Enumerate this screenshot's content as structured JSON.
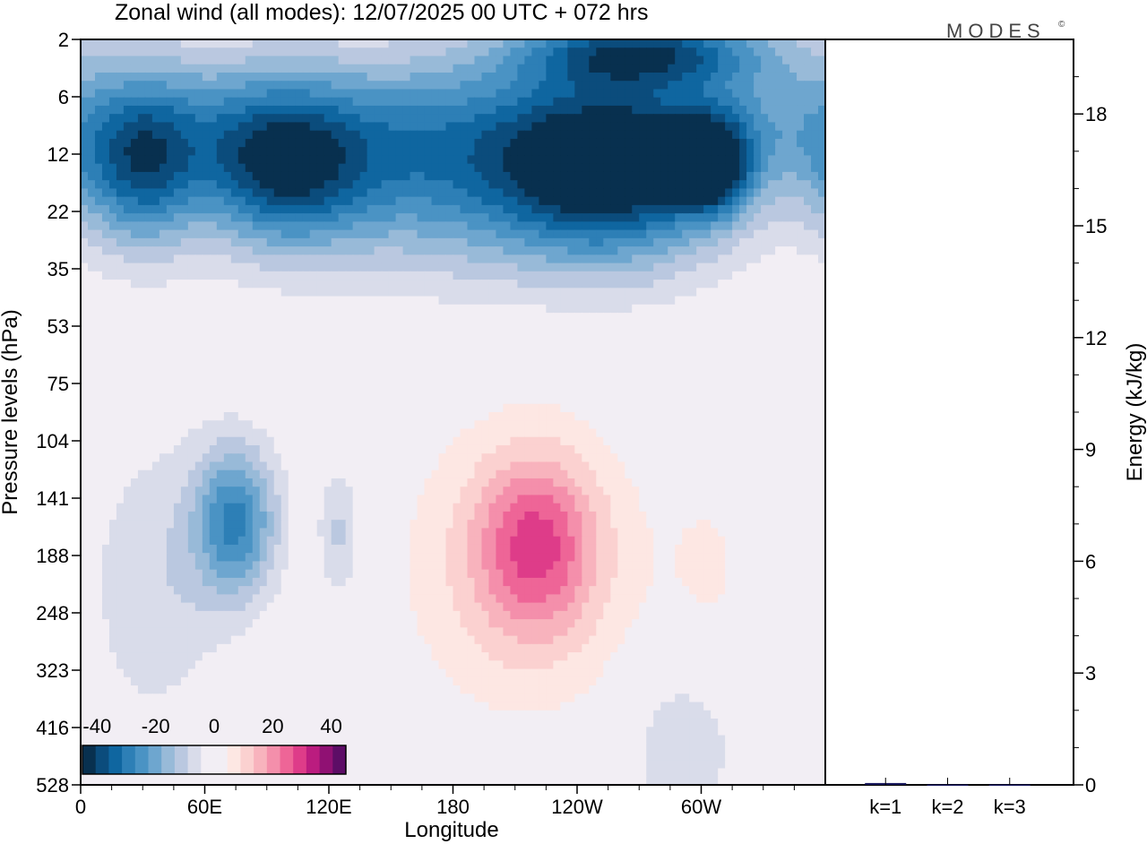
{
  "title": "Zonal wind (all modes):  12/07/2025  00 UTC  + 072 hrs",
  "brand": "MODES",
  "brand_mark": "©",
  "colors": {
    "negative_scale": [
      "#08304f",
      "#0b4c7c",
      "#0f66a0",
      "#2d7fb6",
      "#4a93c4",
      "#6ea6cf",
      "#98bad8",
      "#bac8e0",
      "#d9dcea"
    ],
    "neutral": "#f2eef4",
    "positive_scale": [
      "#fde7e3",
      "#fbd1d0",
      "#f8b3bd",
      "#f48fab",
      "#ee6597",
      "#de3c89",
      "#bb1c7f",
      "#901173",
      "#5d0d66"
    ]
  },
  "chart_data": [
    {
      "type": "heatmap",
      "xlabel": "Longitude",
      "ylabel": "Pressure levels (hPa)",
      "x_ticks": [
        "0",
        "60E",
        "120E",
        "180",
        "120W",
        "60W"
      ],
      "x_tick_values": [
        0,
        60,
        120,
        180,
        240,
        300
      ],
      "xlim": [
        0,
        360
      ],
      "y_ticks": [
        "2",
        "6",
        "12",
        "22",
        "35",
        "53",
        "75",
        "104",
        "141",
        "188",
        "248",
        "323",
        "416",
        "528"
      ],
      "colorbar": {
        "ticks": [
          "-40",
          "-20",
          "0",
          "20",
          "40"
        ],
        "tick_values": [
          -40,
          -20,
          0,
          20,
          40
        ],
        "range": [
          -45,
          45
        ],
        "step": 5
      },
      "features": [
        {
          "lon": 30,
          "level_index": 2.3,
          "value": -30,
          "rlon": 28,
          "rlev": 1.4
        },
        {
          "lon": 95,
          "level_index": 2.3,
          "value": -26,
          "rlon": 38,
          "rlev": 1.4
        },
        {
          "lon": 260,
          "level_index": 2.4,
          "value": -33,
          "rlon": 55,
          "rlev": 1.6
        },
        {
          "lon": 305,
          "level_index": 2.2,
          "value": -38,
          "rlon": 18,
          "rlev": 0.8
        },
        {
          "lon": 180,
          "level_index": 2.6,
          "value": -20,
          "rlon": 70,
          "rlev": 1.6
        },
        {
          "lon": 270,
          "level_index": 0.2,
          "value": -34,
          "rlon": 60,
          "rlev": 0.6
        },
        {
          "lon": 75,
          "level_index": 8.4,
          "value": -30,
          "rlon": 20,
          "rlev": 1.3
        },
        {
          "lon": 125,
          "level_index": 8.6,
          "value": -12,
          "rlon": 10,
          "rlev": 1.2
        },
        {
          "lon": 38,
          "level_index": 9.5,
          "value": -9,
          "rlon": 36,
          "rlev": 2.6
        },
        {
          "lon": 220,
          "level_index": 8.8,
          "value": 22,
          "rlon": 28,
          "rlev": 1.5
        },
        {
          "lon": 215,
          "level_index": 9.2,
          "value": 12,
          "rlon": 60,
          "rlev": 2.6
        },
        {
          "lon": 305,
          "level_index": 9.2,
          "value": 5,
          "rlon": 20,
          "rlev": 1.5
        },
        {
          "lon": 290,
          "level_index": 12.4,
          "value": -9,
          "rlon": 28,
          "rlev": 1.6
        },
        {
          "lon": 70,
          "level_index": 12.6,
          "value": 3,
          "rlon": 25,
          "rlev": 1.6
        }
      ]
    },
    {
      "type": "bar",
      "categories": [
        "k=1",
        "k=2",
        "k=3"
      ],
      "values": [
        0.05,
        0.01,
        0.01
      ],
      "ylabel": "Energy (kJ/kg)",
      "y_ticks": [
        "0",
        "3",
        "6",
        "9",
        "12",
        "15",
        "18"
      ],
      "y_tick_values": [
        0,
        3,
        6,
        9,
        12,
        15,
        18
      ],
      "ylim": [
        0,
        20
      ],
      "bar_color": "#1a1a5e"
    }
  ]
}
